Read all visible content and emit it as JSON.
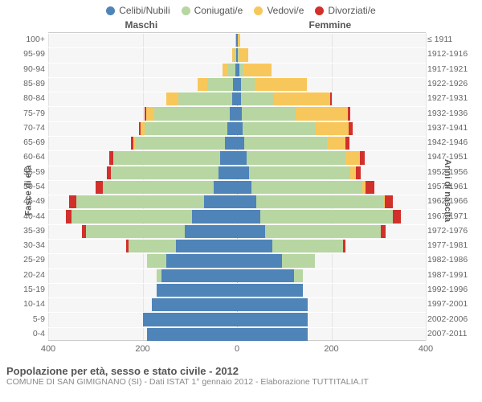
{
  "chart": {
    "type": "population-pyramid",
    "background_color": "#f6f6f6",
    "grid_color": "#e4e4e4",
    "grid_h_color": "#ffffff",
    "text_color": "#555555",
    "subtext_color": "#888888",
    "legend": [
      {
        "label": "Celibi/Nubili",
        "color": "#4f84b8"
      },
      {
        "label": "Coniugati/e",
        "color": "#b7d6a2"
      },
      {
        "label": "Vedovi/e",
        "color": "#f8c75b"
      },
      {
        "label": "Divorziati/e",
        "color": "#d1302b"
      }
    ],
    "header_male": "Maschi",
    "header_female": "Femmine",
    "y_axis_left_title": "Fasce di età",
    "y_axis_right_title": "Anni di nascita",
    "x_axis": {
      "max": 400,
      "ticks": [
        400,
        200,
        0,
        200,
        400
      ]
    },
    "rows": [
      {
        "age": "0-4",
        "birth": "2007-2011",
        "m": [
          190,
          0,
          0,
          0
        ],
        "f": [
          150,
          0,
          0,
          0
        ]
      },
      {
        "age": "5-9",
        "birth": "2002-2006",
        "m": [
          200,
          0,
          0,
          0
        ],
        "f": [
          150,
          0,
          0,
          0
        ]
      },
      {
        "age": "10-14",
        "birth": "1997-2001",
        "m": [
          180,
          0,
          0,
          0
        ],
        "f": [
          150,
          0,
          0,
          0
        ]
      },
      {
        "age": "15-19",
        "birth": "1992-1996",
        "m": [
          170,
          0,
          0,
          0
        ],
        "f": [
          140,
          0,
          0,
          0
        ]
      },
      {
        "age": "20-24",
        "birth": "1987-1991",
        "m": [
          160,
          10,
          0,
          0
        ],
        "f": [
          120,
          20,
          0,
          0
        ]
      },
      {
        "age": "25-29",
        "birth": "1982-1986",
        "m": [
          150,
          40,
          0,
          0
        ],
        "f": [
          95,
          70,
          0,
          0
        ]
      },
      {
        "age": "30-34",
        "birth": "1977-1981",
        "m": [
          130,
          100,
          0,
          5
        ],
        "f": [
          75,
          150,
          0,
          5
        ]
      },
      {
        "age": "35-39",
        "birth": "1972-1976",
        "m": [
          110,
          210,
          0,
          8
        ],
        "f": [
          60,
          245,
          0,
          10
        ]
      },
      {
        "age": "40-44",
        "birth": "1967-1971",
        "m": [
          95,
          255,
          0,
          12
        ],
        "f": [
          50,
          280,
          0,
          18
        ]
      },
      {
        "age": "45-49",
        "birth": "1962-1966",
        "m": [
          70,
          270,
          0,
          15
        ],
        "f": [
          40,
          270,
          3,
          18
        ]
      },
      {
        "age": "50-54",
        "birth": "1957-1961",
        "m": [
          50,
          235,
          0,
          15
        ],
        "f": [
          30,
          235,
          8,
          18
        ]
      },
      {
        "age": "55-59",
        "birth": "1952-1956",
        "m": [
          40,
          225,
          2,
          8
        ],
        "f": [
          25,
          215,
          12,
          10
        ]
      },
      {
        "age": "60-64",
        "birth": "1947-1951",
        "m": [
          35,
          225,
          3,
          8
        ],
        "f": [
          20,
          210,
          30,
          10
        ]
      },
      {
        "age": "65-69",
        "birth": "1942-1946",
        "m": [
          25,
          190,
          5,
          5
        ],
        "f": [
          15,
          175,
          40,
          8
        ]
      },
      {
        "age": "70-74",
        "birth": "1937-1941",
        "m": [
          20,
          175,
          10,
          3
        ],
        "f": [
          12,
          155,
          70,
          8
        ]
      },
      {
        "age": "75-79",
        "birth": "1932-1936",
        "m": [
          15,
          160,
          18,
          2
        ],
        "f": [
          10,
          115,
          110,
          5
        ]
      },
      {
        "age": "80-84",
        "birth": "1927-1931",
        "m": [
          10,
          115,
          25,
          0
        ],
        "f": [
          8,
          70,
          120,
          3
        ]
      },
      {
        "age": "85-89",
        "birth": "1922-1926",
        "m": [
          8,
          55,
          20,
          0
        ],
        "f": [
          8,
          30,
          110,
          0
        ]
      },
      {
        "age": "90-94",
        "birth": "1917-1921",
        "m": [
          3,
          15,
          12,
          0
        ],
        "f": [
          5,
          8,
          60,
          0
        ]
      },
      {
        "age": "95-99",
        "birth": "1912-1916",
        "m": [
          2,
          3,
          5,
          0
        ],
        "f": [
          2,
          2,
          20,
          0
        ]
      },
      {
        "age": "100+",
        "birth": "≤ 1911",
        "m": [
          1,
          0,
          2,
          0
        ],
        "f": [
          1,
          0,
          5,
          0
        ]
      }
    ],
    "title": "Popolazione per età, sesso e stato civile - 2012",
    "subtitle": "COMUNE DI SAN GIMIGNANO (SI) - Dati ISTAT 1° gennaio 2012 - Elaborazione TUTTITALIA.IT"
  }
}
